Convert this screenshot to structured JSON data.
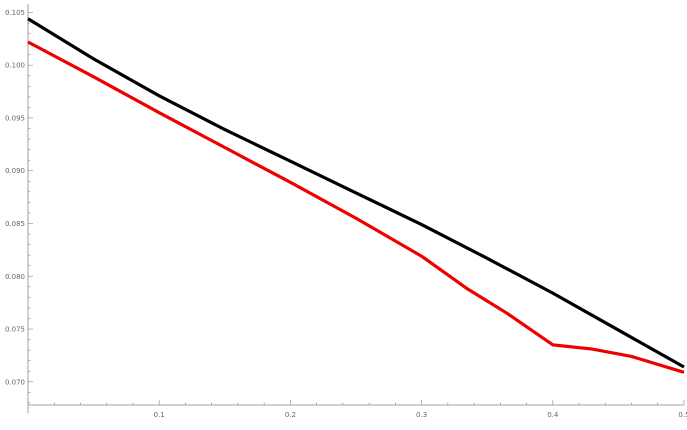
{
  "chart_data": {
    "type": "line",
    "title": "",
    "xlabel": "",
    "ylabel": "",
    "xlim": [
      0,
      0.5
    ],
    "ylim": [
      0.0678,
      0.1058
    ],
    "grid": false,
    "legend": "none",
    "x_ticks": [
      {
        "value": 0.1,
        "label": "0.1"
      },
      {
        "value": 0.2,
        "label": "0.2"
      },
      {
        "value": 0.3,
        "label": "0.3"
      },
      {
        "value": 0.4,
        "label": "0.4"
      },
      {
        "value": 0.5,
        "label": "0.5"
      }
    ],
    "y_ticks": [
      {
        "value": 0.07,
        "label": "0.070"
      },
      {
        "value": 0.075,
        "label": "0.075"
      },
      {
        "value": 0.08,
        "label": "0.080"
      },
      {
        "value": 0.085,
        "label": "0.085"
      },
      {
        "value": 0.09,
        "label": "0.090"
      },
      {
        "value": 0.095,
        "label": "0.095"
      },
      {
        "value": 0.1,
        "label": "0.100"
      },
      {
        "value": 0.105,
        "label": "0.105"
      }
    ],
    "series": [
      {
        "color": "#000000",
        "x": [
          0,
          0.05,
          0.1,
          0.15,
          0.2,
          0.25,
          0.3,
          0.35,
          0.4,
          0.45,
          0.5
        ],
        "y": [
          0.1044,
          0.1006,
          0.0971,
          0.0939,
          0.0909,
          0.0879,
          0.0849,
          0.0817,
          0.0784,
          0.0749,
          0.0714
        ]
      },
      {
        "color": "#ee0000",
        "x": [
          0,
          0.05,
          0.1,
          0.15,
          0.2,
          0.25,
          0.3,
          0.335,
          0.365,
          0.4,
          0.43,
          0.46,
          0.5
        ],
        "y": [
          0.1022,
          0.0989,
          0.0955,
          0.0922,
          0.0889,
          0.0855,
          0.0819,
          0.0788,
          0.0765,
          0.0735,
          0.0731,
          0.0724,
          0.0709
        ]
      }
    ]
  }
}
